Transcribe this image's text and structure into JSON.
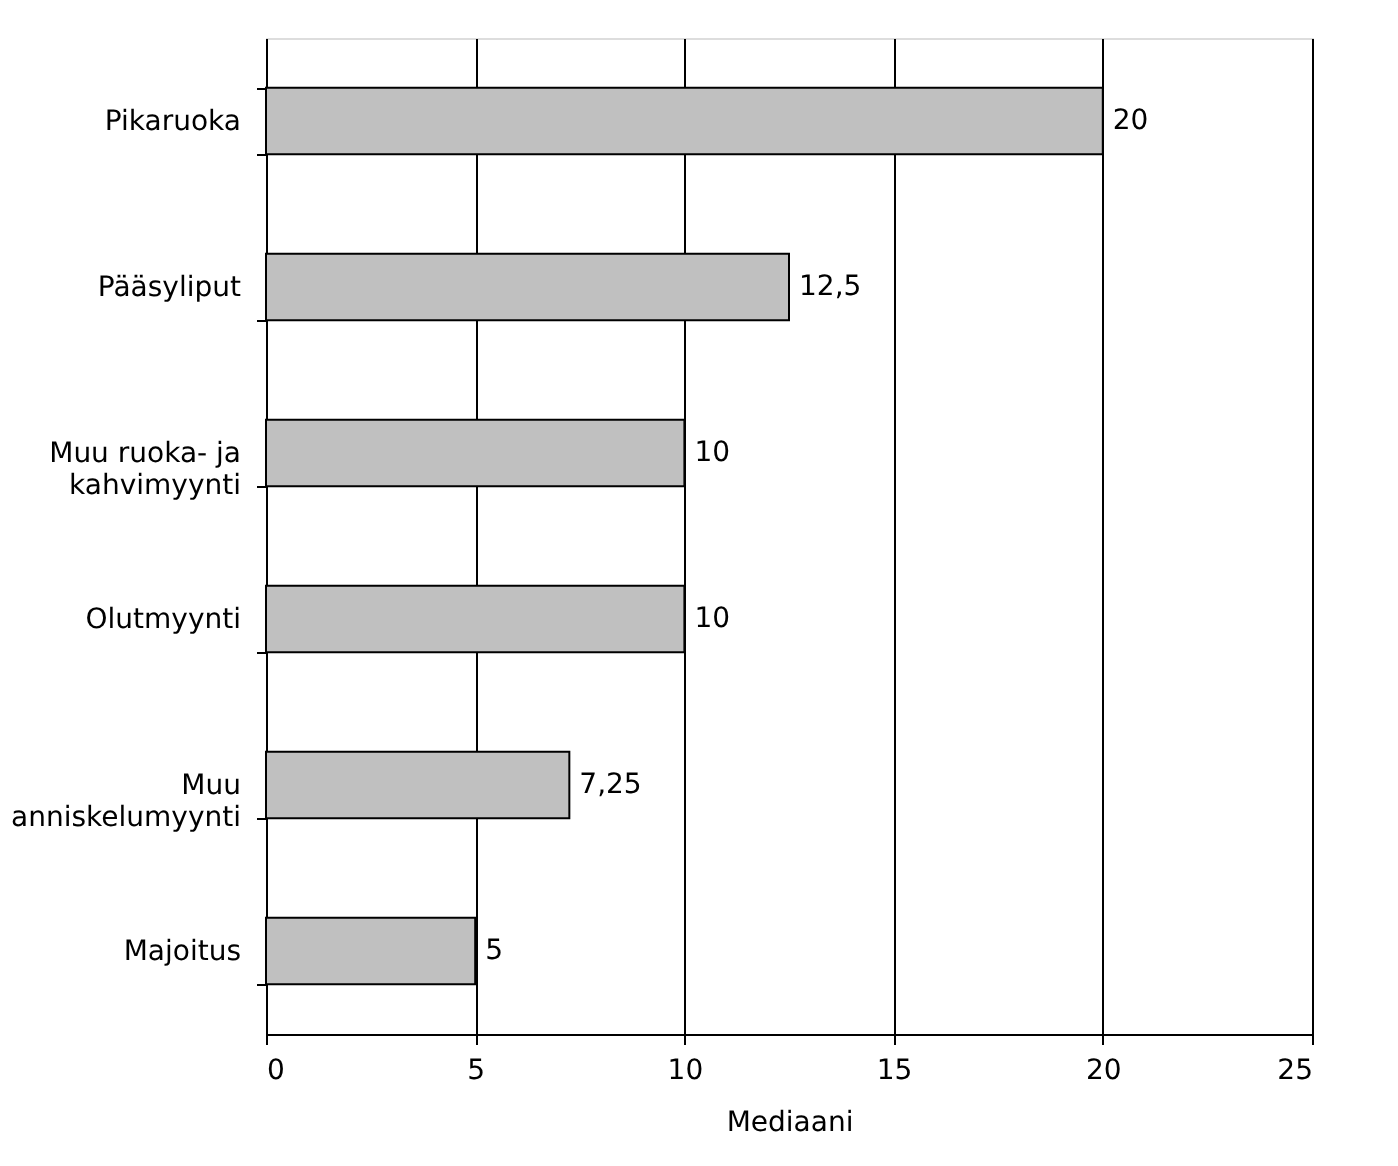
{
  "chart_data": {
    "type": "bar",
    "orientation": "horizontal",
    "xlabel": "Mediaani",
    "categories": [
      "Pikaruoka",
      "Pääsyliput",
      "Muu ruoka- ja\nkahvimyynti",
      "Olutmyynti",
      "Muu\nanniskelumyynti",
      "Majoitus"
    ],
    "values": [
      20,
      12.5,
      10,
      10,
      7.25,
      5
    ],
    "value_labels": [
      "20",
      "12,5",
      "10",
      "10",
      "7,25",
      "5"
    ],
    "color": "#c0c0c0",
    "xlim": [
      0,
      25
    ],
    "xticks": [
      0,
      5,
      10,
      15,
      20,
      25
    ],
    "grid": "x"
  }
}
